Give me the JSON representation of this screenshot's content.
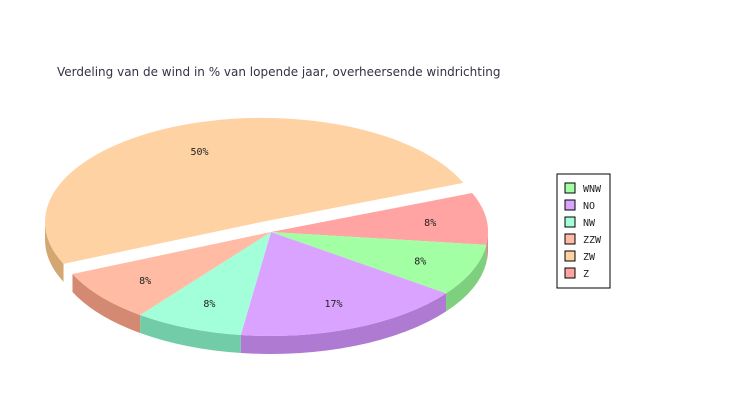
{
  "chart_data": {
    "type": "pie",
    "title": "Verdeling van de wind in  % van lopende jaar, overheersende windrichting",
    "slices": [
      {
        "name": "Z",
        "value": 8,
        "label": "8%",
        "color": "#FFA3A3",
        "side_color": "#D68A8A",
        "exploded": false
      },
      {
        "name": "WNW",
        "value": 8,
        "label": "8%",
        "color": "#A3FFA3",
        "side_color": "#7ED07E",
        "exploded": false
      },
      {
        "name": "NO",
        "value": 17,
        "label": "17%",
        "color": "#DAA3FF",
        "side_color": "#AF7AD2",
        "exploded": false
      },
      {
        "name": "NW",
        "value": 8,
        "label": "8%",
        "color": "#A3FFDA",
        "side_color": "#72CCA8",
        "exploded": false
      },
      {
        "name": "ZZW",
        "value": 8,
        "label": "8%",
        "color": "#FFBBA3",
        "side_color": "#D48A72",
        "exploded": false
      },
      {
        "name": "ZW",
        "value": 50,
        "label": "50%",
        "color": "#FFD2A3",
        "side_color": "#D4A672",
        "exploded": true
      }
    ],
    "legend": {
      "placement": "right",
      "entries": [
        {
          "name": "WNW",
          "color": "#A3FFA3"
        },
        {
          "name": "NO",
          "color": "#DAA3FF"
        },
        {
          "name": "NW",
          "color": "#A3FFDA"
        },
        {
          "name": "ZZW",
          "color": "#FFBBA3"
        },
        {
          "name": "ZW",
          "color": "#FFD2A3"
        },
        {
          "name": "Z",
          "color": "#FFA3A3"
        }
      ]
    }
  }
}
